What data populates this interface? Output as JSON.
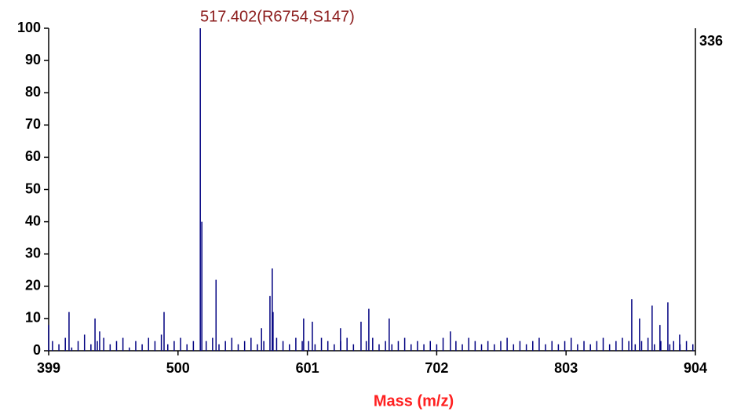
{
  "chart_data": {
    "type": "stem",
    "annotation": "517.402(R6754,S147)",
    "right_axis_label": "336",
    "x_label": "Mass (m/z)",
    "color": "#000080",
    "xlim": [
      399,
      904
    ],
    "xticks": [
      399,
      500,
      601,
      702,
      803,
      904
    ],
    "ylim": [
      0,
      100
    ],
    "yticks": [
      0,
      10,
      20,
      30,
      40,
      50,
      60,
      70,
      80,
      90,
      100
    ],
    "x": [
      399,
      402,
      407,
      412,
      414.9,
      417,
      422,
      427,
      432,
      435.2,
      437,
      438.8,
      442,
      447,
      452,
      457,
      462,
      467,
      472,
      477,
      482,
      487,
      489.1,
      492,
      497,
      502,
      507,
      512,
      517.4,
      518.6,
      522,
      527,
      529.7,
      532,
      537,
      542,
      547,
      552,
      557,
      562,
      565.2,
      567,
      571.8,
      573.6,
      574.2,
      577,
      582,
      587,
      592,
      597,
      598.1,
      602,
      604.9,
      607,
      612,
      617,
      622,
      626.9,
      627,
      632,
      637,
      642.9,
      647,
      649,
      652,
      657,
      662,
      664.9,
      667,
      672,
      677,
      682,
      687,
      692,
      697,
      702,
      707,
      712.7,
      717,
      722,
      727,
      732,
      737,
      742,
      747,
      752,
      757,
      762,
      767,
      772,
      777,
      782,
      787,
      792,
      797,
      802,
      807,
      812,
      817,
      822,
      827,
      832,
      837,
      842,
      847,
      852,
      854.3,
      857,
      860.4,
      862,
      867,
      870.2,
      872,
      876.3,
      877,
      882.5,
      884,
      887,
      891.7,
      892,
      897,
      902
    ],
    "values": [
      8,
      3,
      2,
      4,
      12,
      1,
      3,
      5,
      2,
      10,
      3,
      6,
      4,
      2,
      3,
      4,
      1,
      3,
      2,
      4,
      3,
      5,
      12,
      2,
      3,
      4,
      2,
      3,
      100,
      40,
      3,
      4,
      22,
      2,
      3,
      4,
      2,
      3,
      4,
      2,
      7,
      3,
      17,
      25.5,
      12,
      4,
      3,
      2,
      4,
      3,
      10,
      3,
      9,
      2,
      4,
      3,
      2,
      7,
      3,
      4,
      2,
      9,
      3,
      13,
      4,
      2,
      3,
      10,
      2,
      3,
      4,
      2,
      3,
      2,
      3,
      2,
      4,
      6,
      3,
      2,
      4,
      3,
      2,
      3,
      2,
      3,
      4,
      2,
      3,
      2,
      3,
      4,
      2,
      3,
      2,
      3,
      4,
      2,
      3,
      2,
      3,
      4,
      2,
      3,
      4,
      3,
      16,
      2,
      10,
      3,
      4,
      14,
      2,
      8,
      3,
      15,
      2,
      3,
      5,
      2,
      3,
      2
    ]
  }
}
